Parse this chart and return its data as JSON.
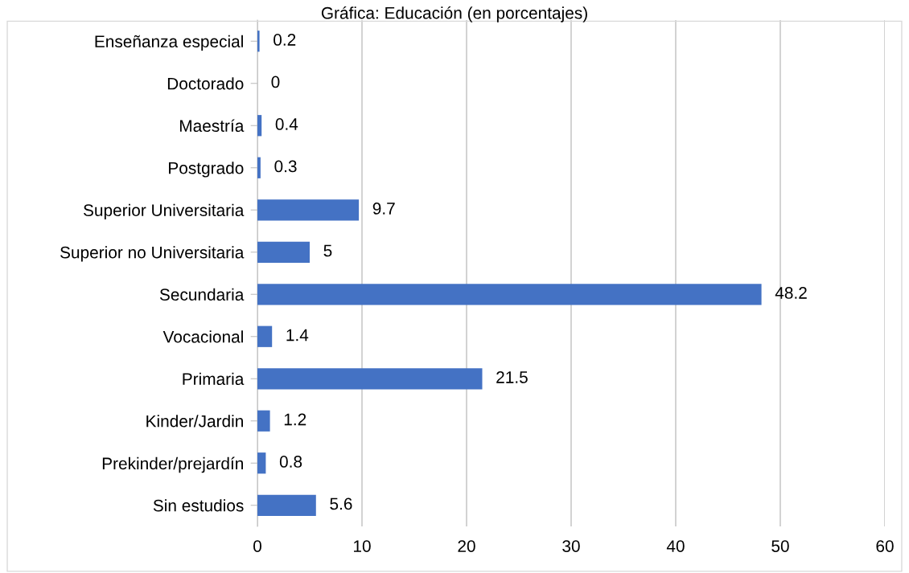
{
  "chart_data": {
    "type": "bar",
    "orientation": "horizontal",
    "title": "Gráfica: Educación (en porcentajes)",
    "categories": [
      "Enseñanza especial",
      "Doctorado",
      "Maestría",
      "Postgrado",
      "Superior Universitaria",
      "Superior no Universitaria",
      "Secundaria",
      "Vocacional",
      "Primaria",
      "Kinder/Jardin",
      "Prekinder/prejardín",
      "Sin estudios"
    ],
    "values": [
      0.2,
      0,
      0.4,
      0.3,
      9.7,
      5,
      48.2,
      1.4,
      21.5,
      1.2,
      0.8,
      5.6
    ],
    "color": "#4472c4",
    "xlim": [
      0,
      60
    ],
    "xticks": [
      0,
      10,
      20,
      30,
      40,
      50,
      60
    ],
    "grid": "x",
    "data_labels": true
  }
}
